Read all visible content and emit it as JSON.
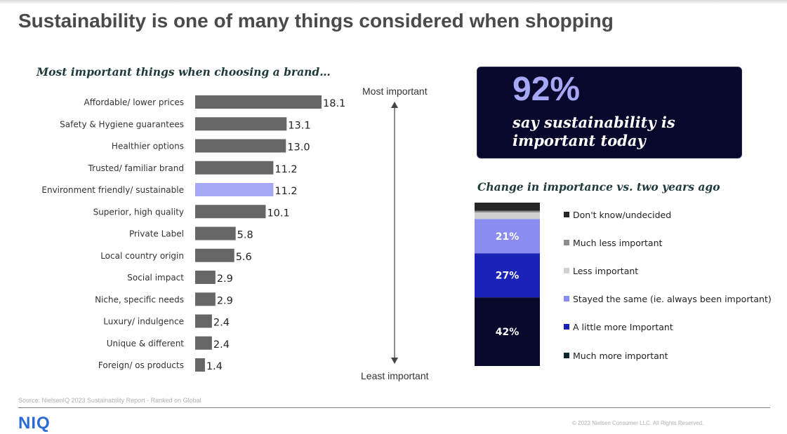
{
  "page": {
    "title": "Sustainability is one of many things considered when shopping",
    "source": "Source: NielsenIQ 2023 Sustainability Report - Ranked on Global",
    "logo": "NIQ",
    "copyright": "© 2023 Nielsen Consumer LLC. All Rights Reserved."
  },
  "callout": {
    "big_value": "92%",
    "text": "say sustainability is important today"
  },
  "colors": {
    "bar_default": "#666666",
    "bar_highlight": "#a6a8f5",
    "callout_bg": "#07082b",
    "callout_accent": "#a6a8f5",
    "stack_dont_know": "#262626",
    "stack_much_less": "#8c8c8c",
    "stack_less": "#d0d0d0",
    "stack_same": "#8a8cf0",
    "stack_little_more": "#1a22b8",
    "stack_much_more": "#07082b"
  },
  "chart_data": [
    {
      "type": "bar",
      "orientation": "horizontal",
      "title": "Most important things when choosing a brand…",
      "categories": [
        "Affordable/ lower prices",
        "Safety & Hygiene guarantees",
        "Healthier options",
        "Trusted/ familiar brand",
        "Environment friendly/ sustainable",
        "Superior, high quality",
        "Private Label",
        "Local country origin",
        "Social impact",
        "Niche, specific needs",
        "Luxury/ indulgence",
        "Unique & different",
        "Foreign/ os products"
      ],
      "values": [
        18.1,
        13.1,
        13.0,
        11.2,
        11.2,
        10.1,
        5.8,
        5.6,
        2.9,
        2.9,
        2.4,
        2.4,
        1.4
      ],
      "value_labels": [
        "18.1",
        "13.1",
        "13.0",
        "11.2",
        "11.2",
        "10.1",
        "5.8",
        "5.6",
        "2.9",
        "2.9",
        "2.4",
        "2.4",
        "1.4"
      ],
      "highlight_category": "Environment friendly/ sustainable",
      "axis_top_label": "Most important",
      "axis_bottom_label": "Least important",
      "xlim": [
        0,
        18.1
      ]
    },
    {
      "type": "bar",
      "stacked": true,
      "title": "Change in importance vs. two years ago",
      "series": [
        {
          "name": "Much more important",
          "value": 42,
          "label": "42%",
          "color_key": "stack_much_more"
        },
        {
          "name": "A little more Important",
          "value": 27,
          "label": "27%",
          "color_key": "stack_little_more"
        },
        {
          "name": "Stayed the same (ie. always been important)",
          "value": 21,
          "label": "21%",
          "color_key": "stack_same"
        },
        {
          "name": "Less important",
          "value": 4,
          "label": "",
          "color_key": "stack_less"
        },
        {
          "name": "Much less important",
          "value": 1,
          "label": "",
          "color_key": "stack_much_less"
        },
        {
          "name": "Don't know/undecided",
          "value": 5,
          "label": "",
          "color_key": "stack_dont_know"
        }
      ],
      "ylim": [
        0,
        100
      ]
    }
  ]
}
